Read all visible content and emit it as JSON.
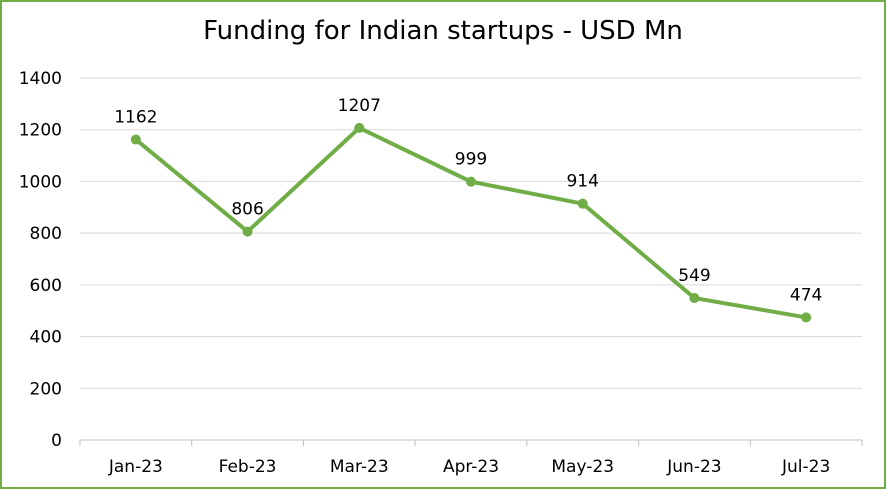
{
  "chart_data": {
    "type": "line",
    "title": "Funding for Indian startups - USD Mn",
    "categories": [
      "Jan-23",
      "Feb-23",
      "Mar-23",
      "Apr-23",
      "May-23",
      "Jun-23",
      "Jul-23"
    ],
    "series": [
      {
        "values": [
          1162,
          806,
          1207,
          999,
          914,
          549,
          474
        ],
        "color": "#70AD47"
      }
    ],
    "ylim": [
      0,
      1400
    ],
    "yticks": [
      0,
      200,
      400,
      600,
      800,
      1000,
      1200,
      1400
    ],
    "grid": true,
    "legend": "none",
    "data_labels": true
  },
  "colors": {
    "border": "#70AD47",
    "grid": "#D9D9D9",
    "axis": "#BFBFBF",
    "line": "#70AD47"
  }
}
